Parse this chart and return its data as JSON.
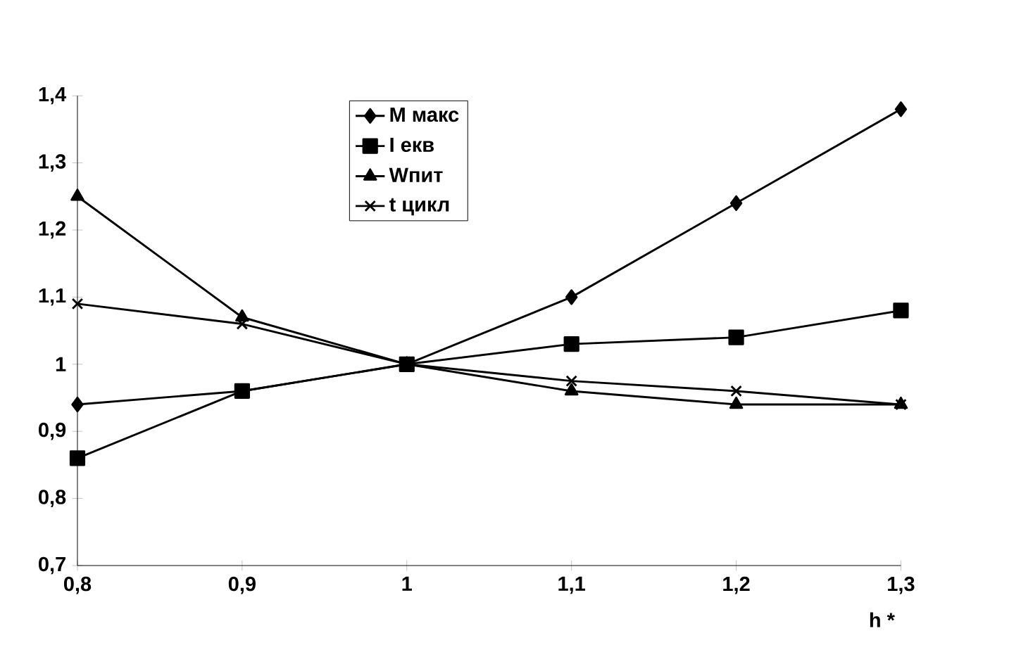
{
  "chart_data": {
    "type": "line",
    "xlabel": "h *",
    "x": [
      0.8,
      0.9,
      1.0,
      1.1,
      1.2,
      1.3
    ],
    "xlim": [
      0.8,
      1.3
    ],
    "xticks": [
      {
        "value": 0.8,
        "label": "0,8"
      },
      {
        "value": 0.9,
        "label": "0,9"
      },
      1,
      {
        "value": 1.1,
        "label": "1,1"
      },
      {
        "value": 1.2,
        "label": "1,2"
      },
      {
        "value": 1.3,
        "label": "1,3"
      }
    ],
    "ylim": [
      0.7,
      1.4
    ],
    "yticks": [
      {
        "value": 0.7,
        "label": "0,7"
      },
      {
        "value": 0.8,
        "label": "0,8"
      },
      {
        "value": 0.9,
        "label": "0,9"
      },
      1,
      {
        "value": 1.1,
        "label": "1,1"
      },
      {
        "value": 1.2,
        "label": "1,2"
      },
      {
        "value": 1.3,
        "label": "1,3"
      },
      {
        "value": 1.4,
        "label": "1,4"
      }
    ],
    "grid": false,
    "legend": "top",
    "line_style": "solid",
    "series": [
      {
        "name": "M макс",
        "color": "#000000",
        "marker": "diamond",
        "values": [
          0.94,
          0.96,
          1.0,
          1.1,
          1.24,
          1.38
        ]
      },
      {
        "name": "I екв",
        "color": "#000000",
        "marker": "square",
        "values": [
          0.86,
          0.96,
          1.0,
          1.03,
          1.04,
          1.08
        ]
      },
      {
        "name": "Wпит",
        "color": "#000000",
        "marker": "triangle",
        "values": [
          1.25,
          1.07,
          1.0,
          0.96,
          0.94,
          0.94
        ]
      },
      {
        "name": "t цикл",
        "color": "#000000",
        "marker": "cross",
        "values": [
          1.09,
          1.06,
          1.0,
          0.975,
          0.96,
          0.94
        ]
      }
    ]
  }
}
